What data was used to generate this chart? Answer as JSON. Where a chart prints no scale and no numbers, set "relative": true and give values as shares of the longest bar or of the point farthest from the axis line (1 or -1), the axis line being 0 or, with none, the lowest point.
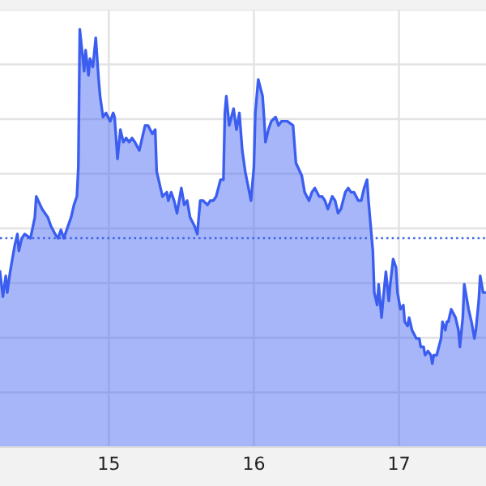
{
  "chart_data": {
    "type": "area",
    "relative": true,
    "grid": true,
    "tick_labels": "x",
    "xlim": [
      14.25,
      17.6
    ],
    "xticks": [
      15,
      16,
      17
    ],
    "ref_lines": [
      {
        "axis": "y",
        "value": 0.5,
        "color": "#3d63e8",
        "line_style": "dotted"
      }
    ],
    "series": [
      {
        "color": "#3b5ef0",
        "x": [
          14.25,
          14.27,
          14.29,
          14.3,
          14.32,
          14.35,
          14.37,
          14.38,
          14.4,
          14.42,
          14.46,
          14.49,
          14.5,
          14.54,
          14.56,
          14.58,
          14.6,
          14.63,
          14.65,
          14.67,
          14.69,
          14.72,
          14.74,
          14.76,
          14.78,
          14.79,
          14.8,
          14.83,
          14.84,
          14.86,
          14.87,
          14.89,
          14.91,
          14.93,
          14.94,
          14.96,
          14.98,
          15.01,
          15.03,
          15.04,
          15.06,
          15.08,
          15.1,
          15.12,
          15.14,
          15.16,
          15.18,
          15.21,
          15.23,
          15.25,
          15.27,
          15.3,
          15.32,
          15.33,
          15.35,
          15.37,
          15.4,
          15.41,
          15.43,
          15.45,
          15.47,
          15.5,
          15.52,
          15.54,
          15.56,
          15.59,
          15.61,
          15.63,
          15.65,
          15.68,
          15.7,
          15.72,
          15.74,
          15.77,
          15.79,
          15.8,
          15.81,
          15.83,
          15.86,
          15.88,
          15.9,
          15.92,
          15.94,
          15.98,
          16.0,
          16.01,
          16.03,
          16.06,
          16.07,
          16.08,
          16.1,
          16.12,
          16.15,
          16.17,
          16.19,
          16.23,
          16.27,
          16.29,
          16.33,
          16.35,
          16.38,
          16.4,
          16.42,
          16.45,
          16.47,
          16.49,
          16.51,
          16.54,
          16.56,
          16.58,
          16.6,
          16.63,
          16.65,
          16.67,
          16.69,
          16.72,
          16.74,
          16.76,
          16.78,
          16.79,
          16.8,
          16.82,
          16.83,
          16.85,
          16.86,
          16.88,
          16.89,
          16.91,
          16.93,
          16.94,
          16.96,
          16.98,
          16.99,
          17.01,
          17.03,
          17.04,
          17.06,
          17.07,
          17.09,
          17.12,
          17.14,
          17.15,
          17.17,
          17.18,
          17.2,
          17.22,
          17.23,
          17.24,
          17.26,
          17.29,
          17.3,
          17.32,
          17.33,
          17.34,
          17.36,
          17.39,
          17.41,
          17.42,
          17.44,
          17.45,
          17.48,
          17.5,
          17.52,
          17.53,
          17.55,
          17.56,
          17.58,
          17.6
        ],
        "values": [
          0.42,
          0.36,
          0.41,
          0.37,
          0.42,
          0.48,
          0.51,
          0.47,
          0.5,
          0.51,
          0.5,
          0.55,
          0.6,
          0.57,
          0.56,
          0.55,
          0.53,
          0.51,
          0.5,
          0.52,
          0.5,
          0.53,
          0.55,
          0.58,
          0.6,
          0.67,
          1.0,
          0.9,
          0.95,
          0.89,
          0.93,
          0.91,
          0.98,
          0.88,
          0.84,
          0.79,
          0.8,
          0.78,
          0.8,
          0.79,
          0.69,
          0.76,
          0.73,
          0.74,
          0.73,
          0.74,
          0.73,
          0.71,
          0.74,
          0.77,
          0.77,
          0.75,
          0.76,
          0.66,
          0.63,
          0.6,
          0.61,
          0.59,
          0.61,
          0.59,
          0.56,
          0.62,
          0.58,
          0.59,
          0.55,
          0.53,
          0.51,
          0.59,
          0.59,
          0.58,
          0.59,
          0.59,
          0.6,
          0.64,
          0.64,
          0.8,
          0.84,
          0.77,
          0.81,
          0.76,
          0.8,
          0.71,
          0.66,
          0.59,
          0.67,
          0.8,
          0.88,
          0.84,
          0.79,
          0.73,
          0.76,
          0.78,
          0.79,
          0.77,
          0.78,
          0.78,
          0.77,
          0.68,
          0.65,
          0.61,
          0.59,
          0.61,
          0.62,
          0.6,
          0.6,
          0.59,
          0.57,
          0.6,
          0.59,
          0.56,
          0.57,
          0.61,
          0.62,
          0.61,
          0.61,
          0.59,
          0.59,
          0.62,
          0.64,
          0.59,
          0.55,
          0.47,
          0.37,
          0.34,
          0.39,
          0.31,
          0.35,
          0.42,
          0.35,
          0.39,
          0.45,
          0.43,
          0.37,
          0.33,
          0.34,
          0.3,
          0.29,
          0.31,
          0.28,
          0.26,
          0.26,
          0.24,
          0.24,
          0.22,
          0.23,
          0.22,
          0.2,
          0.22,
          0.22,
          0.26,
          0.3,
          0.28,
          0.3,
          0.3,
          0.33,
          0.31,
          0.28,
          0.24,
          0.31,
          0.39,
          0.33,
          0.3,
          0.26,
          0.28,
          0.35,
          0.41,
          0.37,
          0.37
        ]
      }
    ]
  }
}
